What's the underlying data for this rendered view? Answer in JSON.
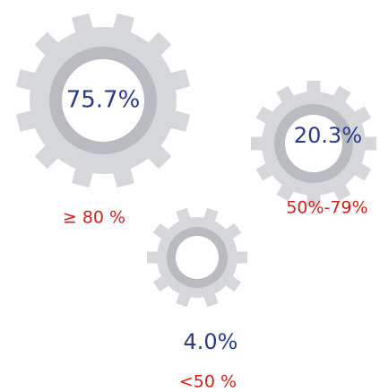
{
  "gears": [
    {
      "value": "75.7%",
      "label": "≥ 80 %"
    },
    {
      "value": "20.3%",
      "label": "50%-79%"
    },
    {
      "value": "4.0%",
      "label": "<50 %"
    }
  ]
}
